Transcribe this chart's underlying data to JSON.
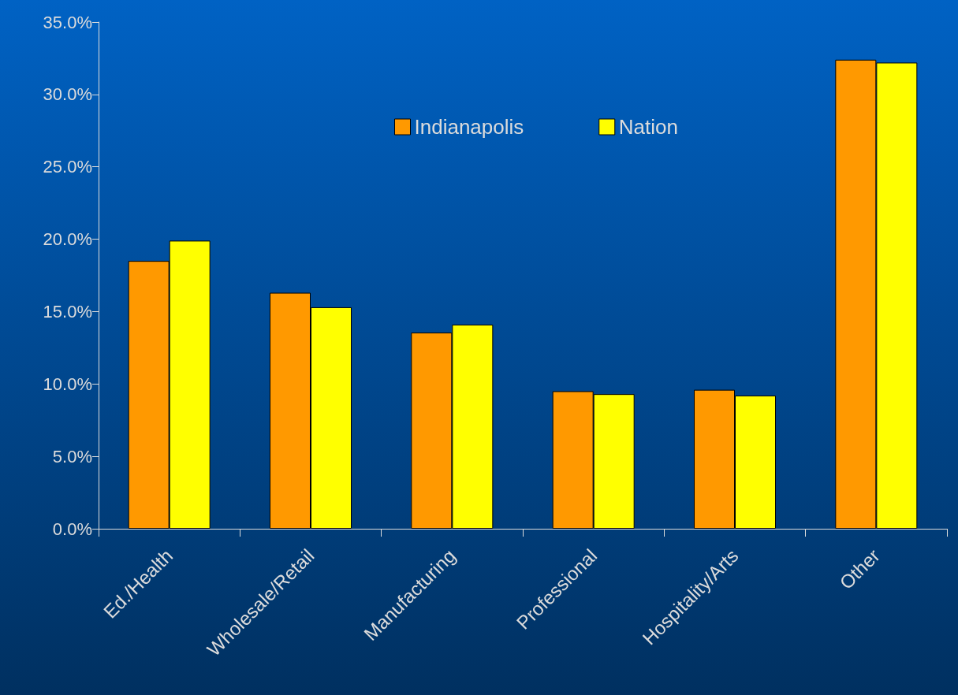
{
  "chart_data": {
    "type": "bar",
    "categories": [
      "Ed./Health",
      "Wholesale/Retail",
      "Manufacturing",
      "Professional",
      "Hospitality/Arts",
      "Other"
    ],
    "series": [
      {
        "name": "Indianapolis",
        "color": "#ff9900",
        "values": [
          18.5,
          16.3,
          13.55,
          9.5,
          9.6,
          32.4
        ]
      },
      {
        "name": "Nation",
        "color": "#ffff00",
        "values": [
          19.9,
          15.3,
          14.1,
          9.3,
          9.2,
          32.2
        ]
      }
    ],
    "ylim": [
      0,
      35
    ],
    "yticks": [
      {
        "value": 0,
        "label": "0.0%"
      },
      {
        "value": 5,
        "label": "5.0%"
      },
      {
        "value": 10,
        "label": "10.0%"
      },
      {
        "value": 15,
        "label": "15.0%"
      },
      {
        "value": 20,
        "label": "20.0%"
      },
      {
        "value": 25,
        "label": "25.0%"
      },
      {
        "value": 30,
        "label": "30.0%"
      },
      {
        "value": 35,
        "label": "35.0%"
      }
    ],
    "grid": false,
    "legend": "top"
  }
}
